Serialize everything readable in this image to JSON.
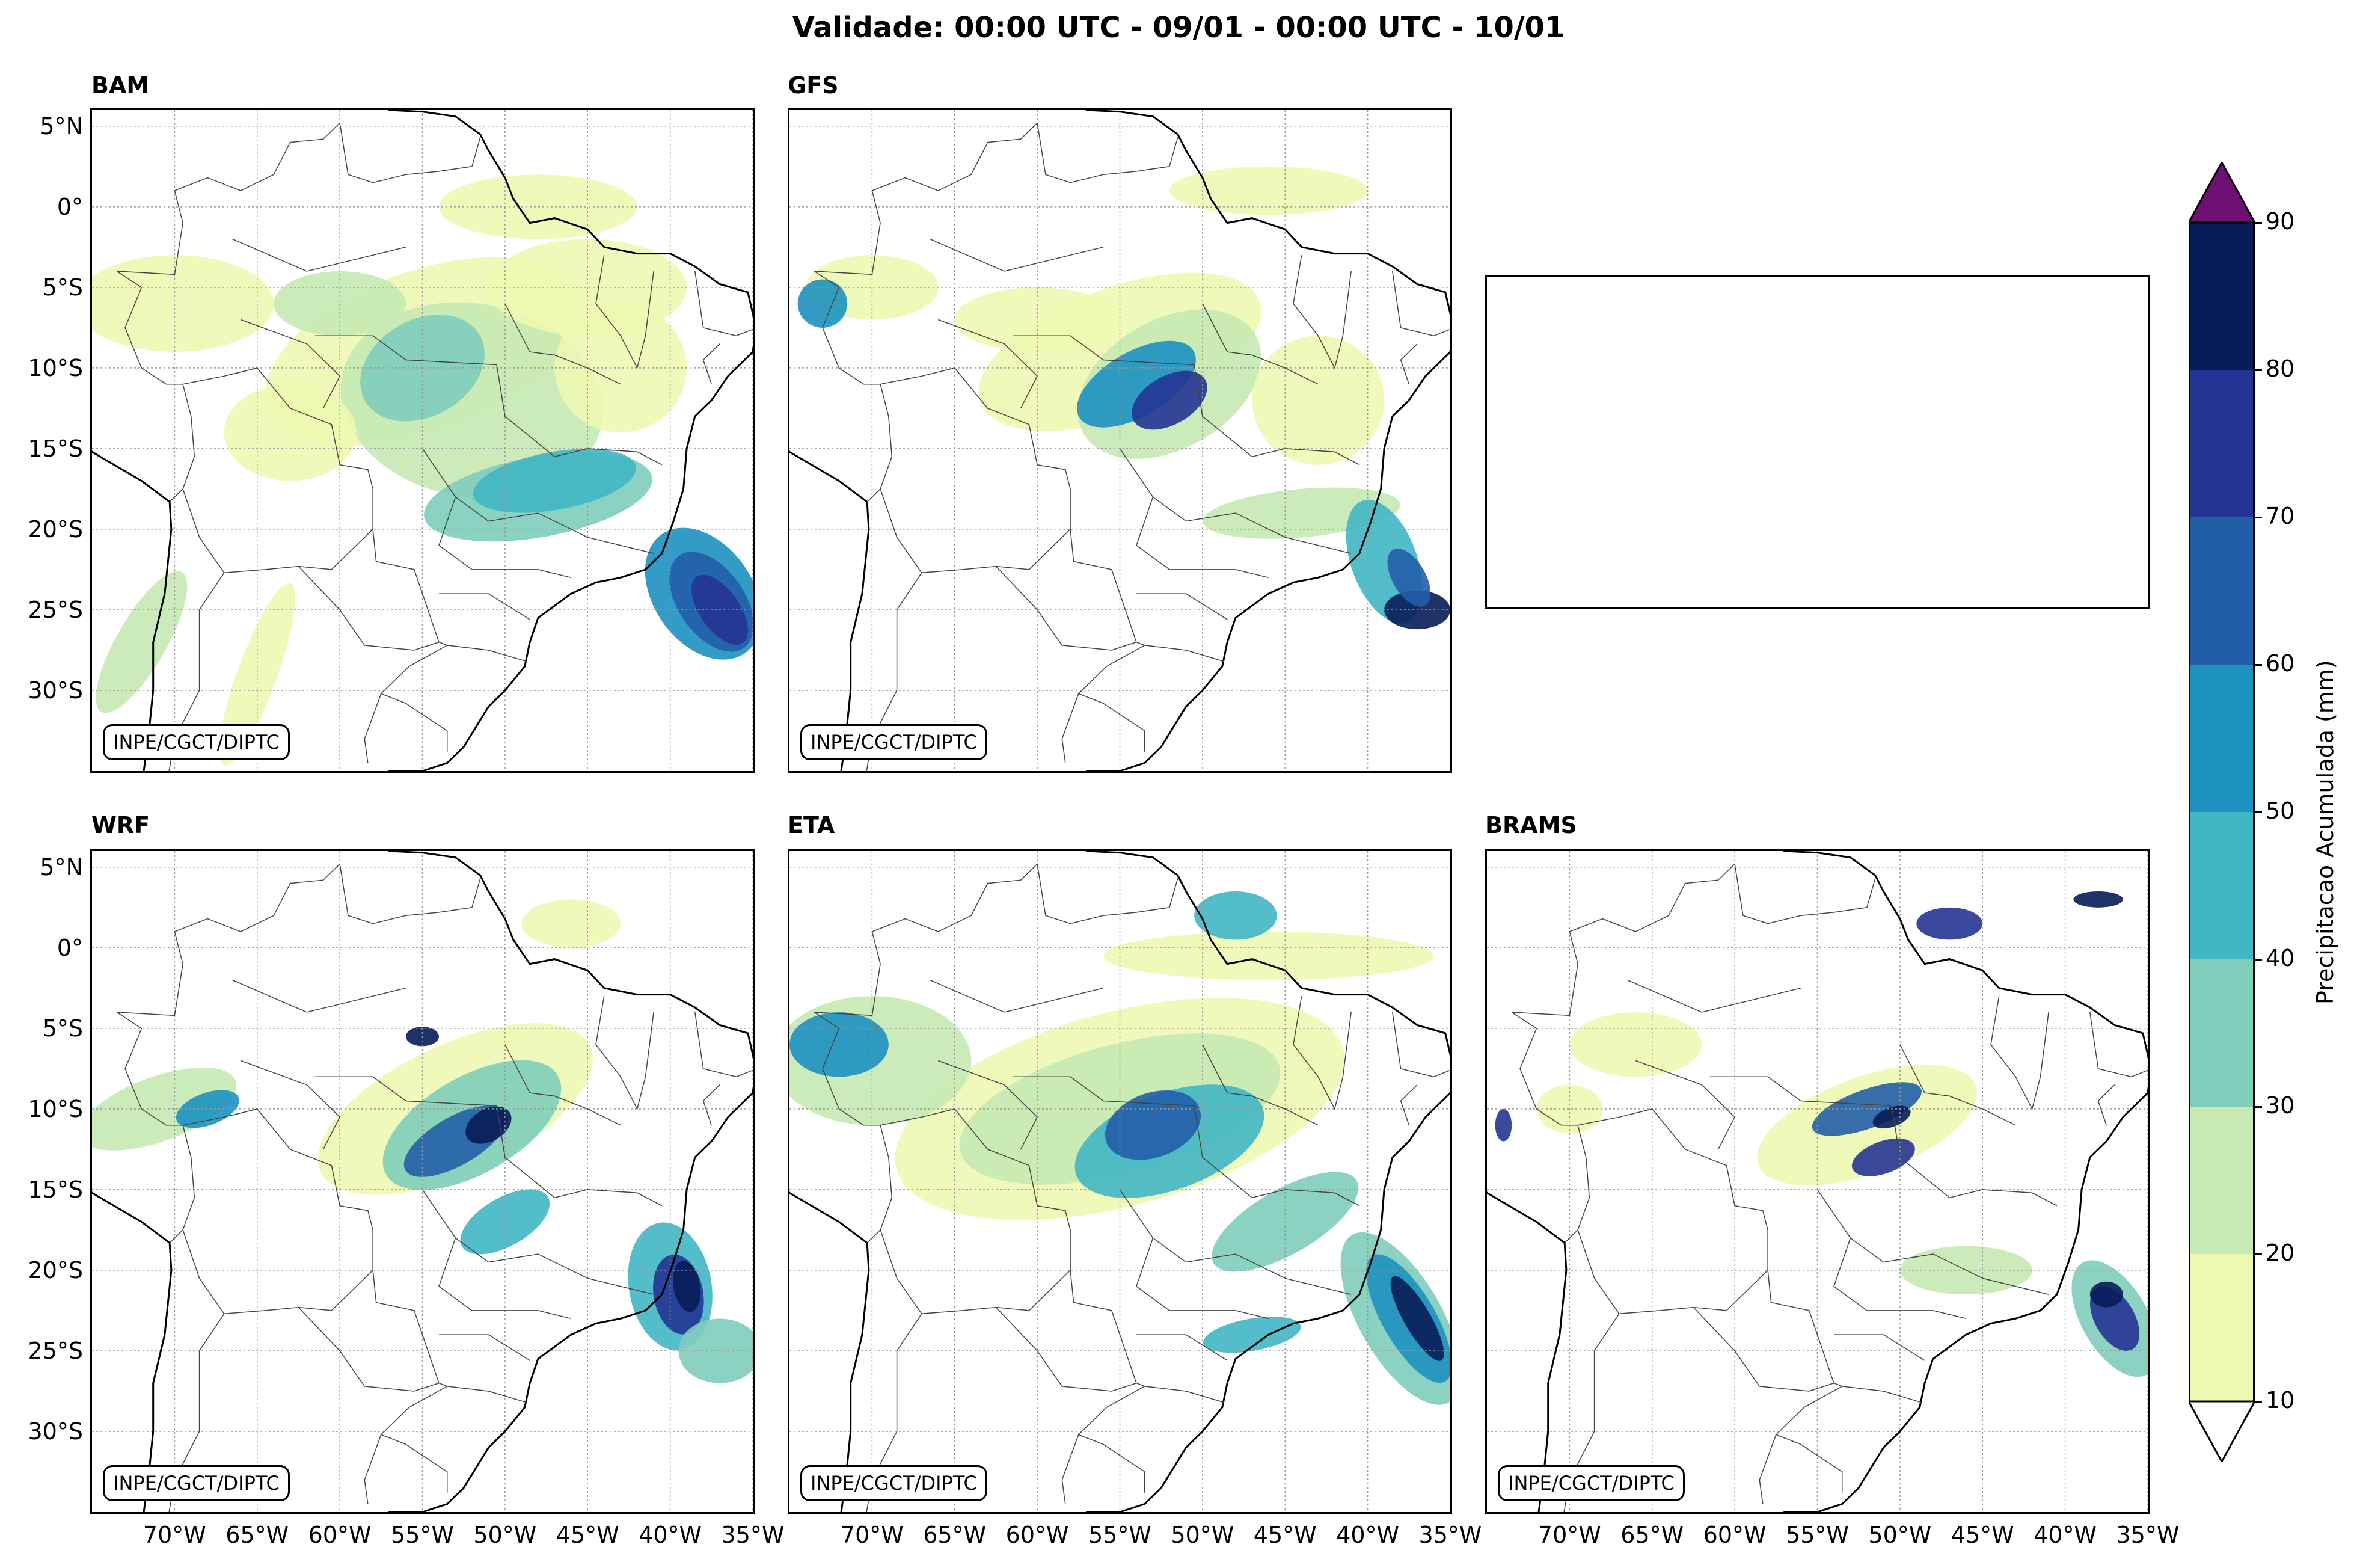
{
  "title": "Validade: 00:00 UTC - 09/01 - 00:00 UTC - 10/01",
  "panels": [
    {
      "id": "bam",
      "label": "BAM",
      "credit": "INPE/CGCT/DIPTC",
      "empty": false
    },
    {
      "id": "gfs",
      "label": "GFS",
      "credit": "INPE/CGCT/DIPTC",
      "empty": false
    },
    {
      "id": "none",
      "label": "",
      "credit": "",
      "empty": true
    },
    {
      "id": "wrf",
      "label": "WRF",
      "credit": "INPE/CGCT/DIPTC",
      "empty": false
    },
    {
      "id": "eta",
      "label": "ETA",
      "credit": "INPE/CGCT/DIPTC",
      "empty": false
    },
    {
      "id": "brams",
      "label": "BRAMS",
      "credit": "INPE/CGCT/DIPTC",
      "empty": false
    }
  ],
  "map": {
    "extent": {
      "lon_min": -75,
      "lon_max": -35,
      "lat_min": -35,
      "lat_max": 6
    },
    "lat_ticks": [
      "5°N",
      "0°",
      "5°S",
      "10°S",
      "15°S",
      "20°S",
      "25°S",
      "30°S"
    ],
    "lon_ticks": [
      "70°W",
      "65°W",
      "60°W",
      "55°W",
      "50°W",
      "45°W",
      "40°W",
      "35°W"
    ]
  },
  "colorbar": {
    "label": "Precipitacao Acumulada (mm)",
    "ticks": [
      "10",
      "20",
      "30",
      "40",
      "50",
      "60",
      "70",
      "80",
      "90"
    ],
    "levels": [
      10,
      20,
      30,
      40,
      50,
      60,
      70,
      80,
      90
    ],
    "colors": [
      "#edf8b1",
      "#c7e9b4",
      "#7fcdbb",
      "#41b6c4",
      "#1d91c0",
      "#225ea8",
      "#253494",
      "#081d58"
    ],
    "under_color": "#ffffff",
    "over_color": "#6e0f74",
    "extend": "both"
  }
}
